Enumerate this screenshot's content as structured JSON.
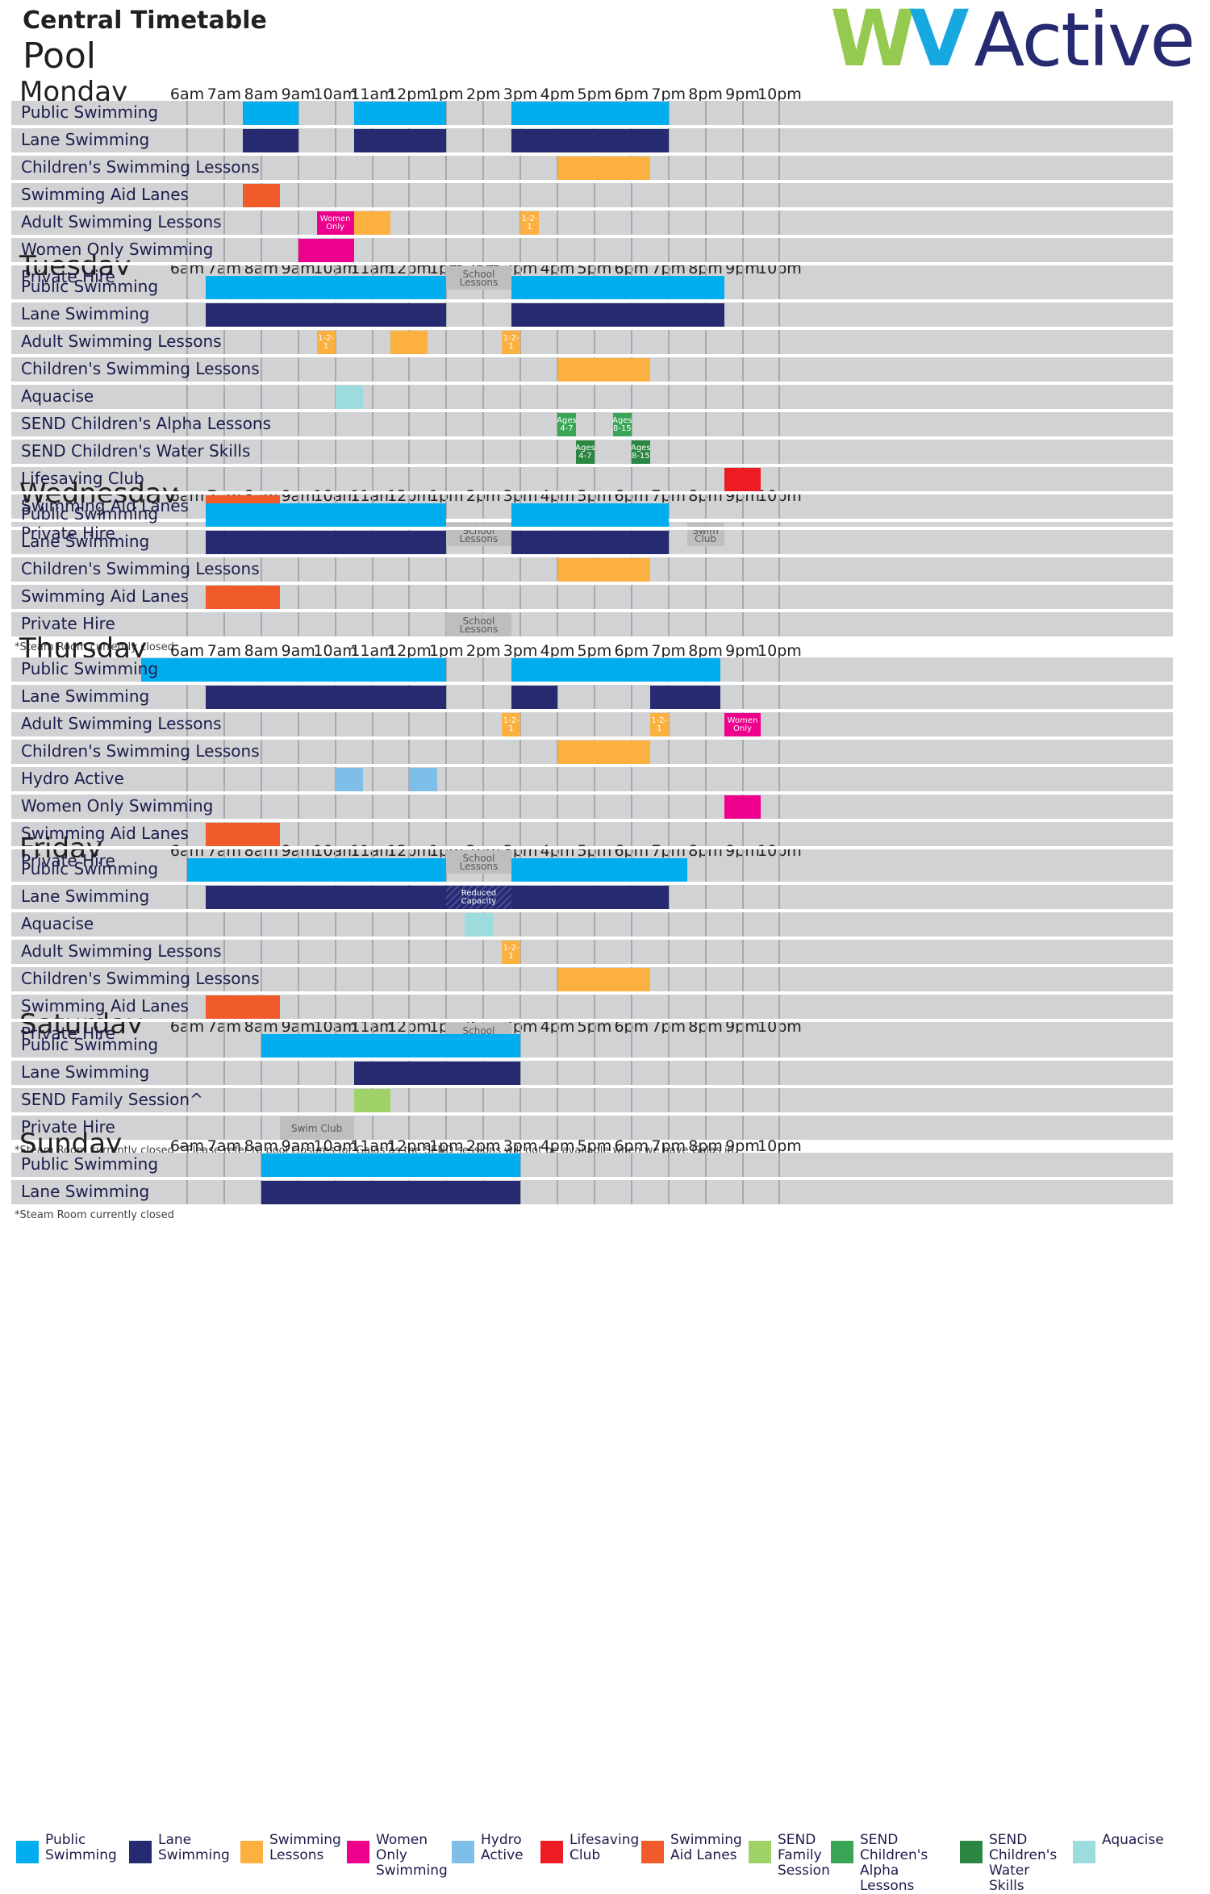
{
  "header": {
    "title": "Central Timetable",
    "subtitle": "Pool"
  },
  "logo": {
    "letter_w": "W",
    "letter_v": "V",
    "word": "Active"
  },
  "colors": {
    "public": "#00aeef",
    "lane": "#262a70",
    "lessons": "#fbb040",
    "women": "#ec008c",
    "hydro": "#7dbfe9",
    "lifesaving": "#ed1c24",
    "aid": "#f15a29",
    "family": "#9fd36a",
    "alpha": "#3aa655",
    "water": "#2a8640",
    "aquacise": "#9ddcdc",
    "grey": "#bcbec0"
  },
  "hours": [
    "6am",
    "7am",
    "8am",
    "9am",
    "10am",
    "11am",
    "12pm",
    "1pm",
    "2pm",
    "3pm",
    "4pm",
    "5pm",
    "6pm",
    "7pm",
    "8pm",
    "9pm",
    "10pm"
  ],
  "days": [
    {
      "name": "Monday",
      "note": "*Steam Room currently closed",
      "rows": [
        {
          "label": "Public Swimming",
          "blocks": [
            {
              "start": 7.5,
              "end": 9,
              "color": "public"
            },
            {
              "start": 10.5,
              "end": 13,
              "color": "public"
            },
            {
              "start": 14.75,
              "end": 19,
              "color": "public"
            }
          ]
        },
        {
          "label": "Lane Swimming",
          "blocks": [
            {
              "start": 7.5,
              "end": 9,
              "color": "lane"
            },
            {
              "start": 10.5,
              "end": 13,
              "color": "lane"
            },
            {
              "start": 14.75,
              "end": 19,
              "color": "lane"
            }
          ]
        },
        {
          "label": "Children's Swimming Lessons",
          "blocks": [
            {
              "start": 16,
              "end": 18.5,
              "color": "lessons"
            }
          ]
        },
        {
          "label": "Swimming Aid Lanes",
          "blocks": [
            {
              "start": 7.5,
              "end": 8.5,
              "color": "aid"
            }
          ]
        },
        {
          "label": "Adult Swimming Lessons",
          "blocks": [
            {
              "start": 9.5,
              "end": 10.5,
              "color": "women",
              "text": "Women Only"
            },
            {
              "start": 10.5,
              "end": 11.5,
              "color": "lessons"
            },
            {
              "start": 15,
              "end": 15.5,
              "color": "lessons",
              "text": "1-2-1"
            }
          ]
        },
        {
          "label": "Women Only Swimming",
          "blocks": [
            {
              "start": 9,
              "end": 10.5,
              "color": "women"
            }
          ]
        },
        {
          "label": "Private Hire",
          "blocks": [
            {
              "start": 13,
              "end": 14.75,
              "color": "grey",
              "text": "School Lessons"
            }
          ]
        }
      ]
    },
    {
      "name": "Tuesday",
      "note": "*Steam Room currently closed",
      "rows": [
        {
          "label": "Public Swimming",
          "blocks": [
            {
              "start": 6.5,
              "end": 13,
              "color": "public"
            },
            {
              "start": 14.75,
              "end": 20.5,
              "color": "public"
            }
          ]
        },
        {
          "label": "Lane Swimming",
          "blocks": [
            {
              "start": 6.5,
              "end": 13,
              "color": "lane"
            },
            {
              "start": 14.75,
              "end": 20.5,
              "color": "lane"
            }
          ]
        },
        {
          "label": "Adult Swimming Lessons",
          "blocks": [
            {
              "start": 9.5,
              "end": 10,
              "color": "lessons",
              "text": "1-2-1"
            },
            {
              "start": 11.5,
              "end": 12.5,
              "color": "lessons"
            },
            {
              "start": 14.5,
              "end": 15,
              "color": "lessons",
              "text": "1-2-1"
            }
          ]
        },
        {
          "label": "Children's Swimming Lessons",
          "blocks": [
            {
              "start": 16,
              "end": 18.5,
              "color": "lessons"
            }
          ]
        },
        {
          "label": "Aquacise",
          "blocks": [
            {
              "start": 10,
              "end": 10.75,
              "color": "aquacise"
            }
          ]
        },
        {
          "label": "SEND Children's Alpha Lessons",
          "blocks": [
            {
              "start": 16,
              "end": 16.5,
              "color": "alpha",
              "text": "Ages 4-7"
            },
            {
              "start": 17.5,
              "end": 18,
              "color": "alpha",
              "text": "Ages 8-15"
            }
          ]
        },
        {
          "label": "SEND Children's Water Skills",
          "blocks": [
            {
              "start": 16.5,
              "end": 17,
              "color": "water",
              "text": "Ages 4-7"
            },
            {
              "start": 18,
              "end": 18.5,
              "color": "water",
              "text": "Ages 8-15"
            }
          ]
        },
        {
          "label": "Lifesaving Club",
          "blocks": [
            {
              "start": 20.5,
              "end": 21.5,
              "color": "lifesaving"
            }
          ]
        },
        {
          "label": "Swimming Aid Lanes",
          "blocks": [
            {
              "start": 6.5,
              "end": 8.5,
              "color": "aid"
            }
          ]
        },
        {
          "label": "Private Hire",
          "blocks": [
            {
              "start": 13,
              "end": 14.75,
              "color": "grey",
              "text": "School Lessons"
            },
            {
              "start": 19.5,
              "end": 20.5,
              "color": "grey",
              "text": "Swim Club"
            }
          ]
        }
      ]
    },
    {
      "name": "Wednesday",
      "note": "*Steam Room currently closed",
      "rows": [
        {
          "label": "Public Swimming",
          "blocks": [
            {
              "start": 6.5,
              "end": 13,
              "color": "public"
            },
            {
              "start": 14.75,
              "end": 19,
              "color": "public"
            }
          ]
        },
        {
          "label": "Lane Swimming",
          "blocks": [
            {
              "start": 6.5,
              "end": 13,
              "color": "lane"
            },
            {
              "start": 14.75,
              "end": 19,
              "color": "lane"
            }
          ]
        },
        {
          "label": "Children's Swimming Lessons",
          "blocks": [
            {
              "start": 16,
              "end": 18.5,
              "color": "lessons"
            }
          ]
        },
        {
          "label": "Swimming Aid Lanes",
          "blocks": [
            {
              "start": 6.5,
              "end": 8.5,
              "color": "aid"
            }
          ]
        },
        {
          "label": "Private Hire",
          "blocks": [
            {
              "start": 13,
              "end": 14.75,
              "color": "grey",
              "text": "School Lessons"
            }
          ]
        }
      ]
    },
    {
      "name": "Thursday",
      "note": "*Steam Room currently closed",
      "rows": [
        {
          "label": "Public Swimming",
          "blocks": [
            {
              "start": 4.75,
              "end": 13,
              "color": "public"
            },
            {
              "start": 14.75,
              "end": 20.4,
              "color": "public"
            }
          ]
        },
        {
          "label": "Lane Swimming",
          "blocks": [
            {
              "start": 6.5,
              "end": 13,
              "color": "lane"
            },
            {
              "start": 14.75,
              "end": 16,
              "color": "lane"
            },
            {
              "start": 18.5,
              "end": 20.4,
              "color": "lane"
            }
          ]
        },
        {
          "label": "Adult Swimming Lessons",
          "blocks": [
            {
              "start": 14.5,
              "end": 15,
              "color": "lessons",
              "text": "1-2-1"
            },
            {
              "start": 18.5,
              "end": 19,
              "color": "lessons",
              "text": "1-2-1"
            },
            {
              "start": 20.5,
              "end": 21.5,
              "color": "women",
              "text": "Women Only"
            }
          ]
        },
        {
          "label": "Children's Swimming Lessons",
          "blocks": [
            {
              "start": 16,
              "end": 18.5,
              "color": "lessons"
            }
          ]
        },
        {
          "label": "Hydro Active",
          "blocks": [
            {
              "start": 10,
              "end": 10.75,
              "color": "hydro"
            },
            {
              "start": 12,
              "end": 12.75,
              "color": "hydro"
            }
          ]
        },
        {
          "label": "Women Only Swimming",
          "blocks": [
            {
              "start": 20.5,
              "end": 21.5,
              "color": "women"
            }
          ]
        },
        {
          "label": "Swimming Aid Lanes",
          "blocks": [
            {
              "start": 6.5,
              "end": 8.5,
              "color": "aid"
            }
          ]
        },
        {
          "label": "Private Hire",
          "blocks": [
            {
              "start": 13,
              "end": 14.75,
              "color": "grey",
              "text": "School Lessons"
            }
          ]
        }
      ]
    },
    {
      "name": "Friday",
      "note": "*Steam Room currently closed",
      "rows": [
        {
          "label": "Public Swimming",
          "blocks": [
            {
              "start": 6,
              "end": 13,
              "color": "public"
            },
            {
              "start": 14.75,
              "end": 19.5,
              "color": "public"
            }
          ]
        },
        {
          "label": "Lane Swimming",
          "blocks": [
            {
              "start": 6.5,
              "end": 13,
              "color": "lane"
            },
            {
              "start": 13,
              "end": 14.75,
              "color": "lane",
              "text": "Reduced Capacity",
              "hatch": true
            },
            {
              "start": 14.75,
              "end": 19,
              "color": "lane"
            }
          ]
        },
        {
          "label": "Aquacise",
          "blocks": [
            {
              "start": 13.5,
              "end": 14.25,
              "color": "aquacise"
            }
          ]
        },
        {
          "label": "Adult Swimming Lessons",
          "blocks": [
            {
              "start": 14.5,
              "end": 15,
              "color": "lessons",
              "text": "1-2-1"
            }
          ]
        },
        {
          "label": "Children's Swimming Lessons",
          "blocks": [
            {
              "start": 16,
              "end": 18.5,
              "color": "lessons"
            }
          ]
        },
        {
          "label": "Swimming Aid Lanes",
          "blocks": [
            {
              "start": 6.5,
              "end": 8.5,
              "color": "aid"
            }
          ]
        },
        {
          "label": "Private Hire",
          "blocks": [
            {
              "start": 13,
              "end": 14.75,
              "color": "grey",
              "text": "School Lessons"
            }
          ]
        }
      ]
    },
    {
      "name": "Saturday",
      "note": "*Steam Room currently closed    ^Please refer to pool closures for Galas as the SEND sessions will not be available when we have Galas in.",
      "rows": [
        {
          "label": "Public Swimming",
          "blocks": [
            {
              "start": 8,
              "end": 15,
              "color": "public"
            }
          ]
        },
        {
          "label": "Lane Swimming",
          "blocks": [
            {
              "start": 10.5,
              "end": 15,
              "color": "lane"
            }
          ]
        },
        {
          "label": "SEND Family Session^",
          "blocks": [
            {
              "start": 10.5,
              "end": 11.5,
              "color": "family"
            }
          ]
        },
        {
          "label": "Private Hire",
          "blocks": [
            {
              "start": 8.5,
              "end": 10.5,
              "color": "grey",
              "text": "Swim Club"
            }
          ]
        }
      ]
    },
    {
      "name": "Sunday",
      "note": "*Steam Room currently closed",
      "rows": [
        {
          "label": "Public Swimming",
          "blocks": [
            {
              "start": 8,
              "end": 15,
              "color": "public"
            }
          ]
        },
        {
          "label": "Lane Swimming",
          "blocks": [
            {
              "start": 8,
              "end": 15,
              "color": "lane"
            }
          ]
        }
      ]
    }
  ],
  "legend": [
    {
      "label": "Public\nSwimming",
      "color": "public"
    },
    {
      "label": "Lane\nSwimming",
      "color": "lane"
    },
    {
      "label": "Swimming\nLessons",
      "color": "lessons"
    },
    {
      "label": "Women\nOnly\nSwimming",
      "color": "women"
    },
    {
      "label": "Hydro\nActive",
      "color": "hydro"
    },
    {
      "label": "Lifesaving\nClub",
      "color": "lifesaving"
    },
    {
      "label": "Swimming\nAid Lanes",
      "color": "aid"
    },
    {
      "label": "SEND\nFamily\nSession",
      "color": "family"
    },
    {
      "label": "SEND\nChildren's\nAlpha Lessons",
      "color": "alpha"
    },
    {
      "label": "SEND\nChildren's\nWater Skills",
      "color": "water"
    },
    {
      "label": "Aquacise",
      "color": "aquacise"
    }
  ]
}
